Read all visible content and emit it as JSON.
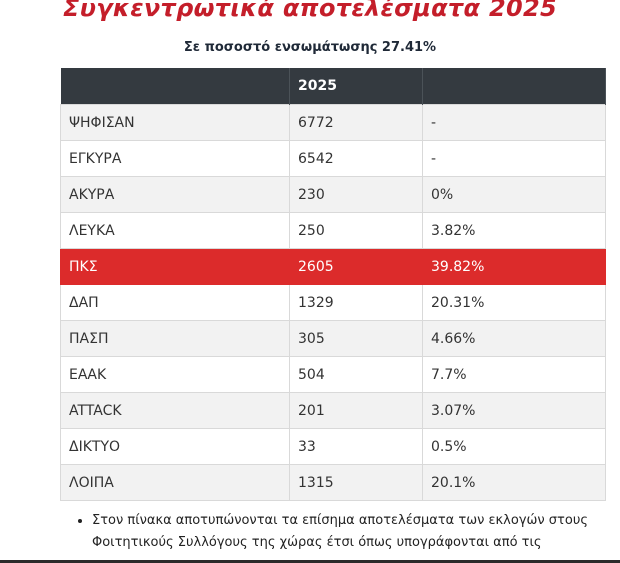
{
  "page": {
    "title": "Συγκεντρωτικά αποτελέσματα 2025",
    "subtitle": "Σε ποσοστό ενσωμάτωσης 27.41%"
  },
  "table": {
    "headers": [
      "",
      "2025",
      ""
    ],
    "rows": [
      {
        "label": "ΨΗΦΙΣΑΝ",
        "votes": "6772",
        "pct": "-"
      },
      {
        "label": "ΕΓΚΥΡΑ",
        "votes": "6542",
        "pct": "-"
      },
      {
        "label": "ΑΚΥΡΑ",
        "votes": "230",
        "pct": "0%"
      },
      {
        "label": "ΛΕΥΚΑ",
        "votes": "250",
        "pct": "3.82%"
      },
      {
        "label": "ΠΚΣ",
        "votes": "2605",
        "pct": "39.82%"
      },
      {
        "label": "ΔΑΠ",
        "votes": "1329",
        "pct": "20.31%"
      },
      {
        "label": "ΠΑΣΠ",
        "votes": "305",
        "pct": "4.66%"
      },
      {
        "label": "ΕΑΑΚ",
        "votes": "504",
        "pct": "7.7%"
      },
      {
        "label": "ATTACK",
        "votes": "201",
        "pct": "3.07%"
      },
      {
        "label": "ΔΙΚΤΥΟ",
        "votes": "33",
        "pct": "0.5%"
      },
      {
        "label": "ΛΟΙΠΑ",
        "votes": "1315",
        "pct": "20.1%"
      }
    ]
  },
  "notes": [
    "Στον πίνακα αποτυπώνονται τα επίσημα αποτελέσματα των εκλογών στους Φοιτητικούς Συλλόγους της χώρας έτσι όπως υπογράφονται από τις"
  ],
  "colors": {
    "title": "#c41e2a",
    "header_bg": "#343a40",
    "highlight_row": "#dc2b2b"
  }
}
